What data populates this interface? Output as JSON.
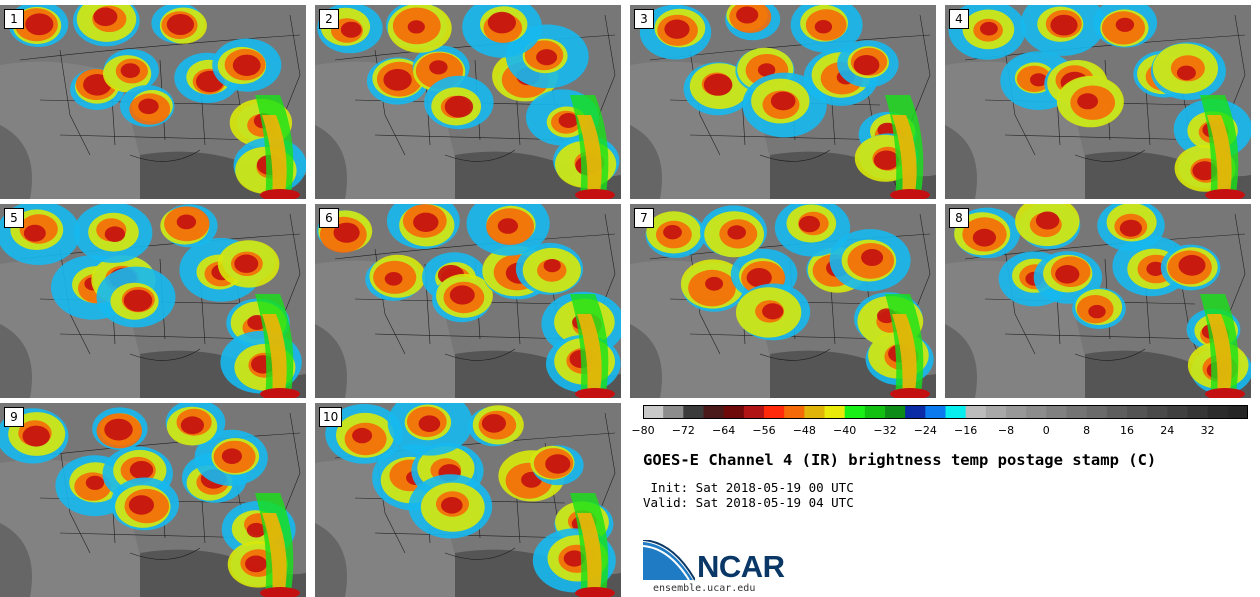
{
  "panels": [
    {
      "label": "1"
    },
    {
      "label": "2"
    },
    {
      "label": "3"
    },
    {
      "label": "4"
    },
    {
      "label": "5"
    },
    {
      "label": "6"
    },
    {
      "label": "7"
    },
    {
      "label": "8"
    },
    {
      "label": "9"
    },
    {
      "label": "10"
    }
  ],
  "colorbar": {
    "ticks": [
      "−80",
      "−72",
      "−64",
      "−56",
      "−48",
      "−40",
      "−32",
      "−24",
      "−16",
      "−8",
      "0",
      "8",
      "16",
      "24",
      "32"
    ],
    "range": [
      -80,
      40
    ],
    "colors": [
      "#c9c9c9",
      "#8c8c8c",
      "#3b3b3b",
      "#4a1a1a",
      "#6e0a0a",
      "#b01414",
      "#ff2a0a",
      "#f56a08",
      "#e0b408",
      "#eaea0a",
      "#18f018",
      "#12c012",
      "#0e8c18",
      "#0a2aa6",
      "#0a7aee",
      "#08eeee",
      "#bcbcbc",
      "#a8a8a8",
      "#989898",
      "#8c8c8c",
      "#808080",
      "#747474",
      "#6a6a6a",
      "#5e5e5e",
      "#545454",
      "#4a4a4a",
      "#404040",
      "#363636",
      "#2c2c2c",
      "#262626"
    ]
  },
  "title": "GOES-E Channel 4 (IR) brightness temp postage stamp (C)",
  "init": " Init: Sat 2018-05-19 00 UTC",
  "valid": "Valid: Sat 2018-05-19 04 UTC",
  "logo": {
    "name": "NCAR",
    "url": "ensemble.ucar.edu"
  }
}
